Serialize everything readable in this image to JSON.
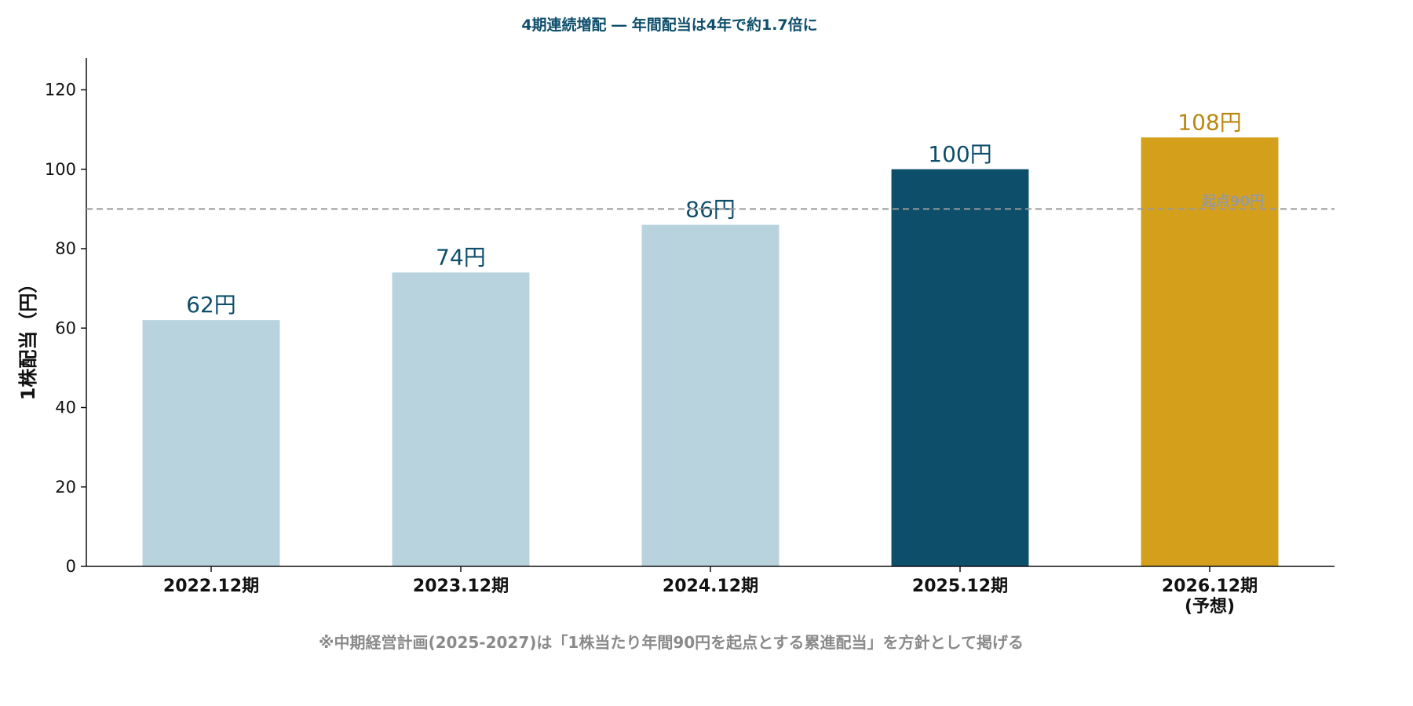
{
  "chart_data": {
    "type": "bar",
    "title": "4期連続増配 ― 年間配当は4年で約1.7倍に",
    "ylabel": "1株配当（円）",
    "ylim": [
      0,
      128
    ],
    "yticks": [
      0,
      20,
      40,
      60,
      80,
      100,
      120
    ],
    "categories": [
      "2022.12期",
      "2023.12期",
      "2024.12期",
      "2025.12期",
      "2026.12期"
    ],
    "category_sublabels": [
      "",
      "",
      "",
      "",
      "(予想)"
    ],
    "values": [
      62,
      74,
      86,
      100,
      108
    ],
    "value_labels": [
      "62円",
      "74円",
      "86円",
      "100円",
      "108円"
    ],
    "bar_colors": [
      "#b8d3dd",
      "#b8d3dd",
      "#b8d3dd",
      "#0d4e6b",
      "#d4a01c"
    ],
    "label_colors": [
      "#0d4e6b",
      "#0d4e6b",
      "#0d4e6b",
      "#0d4e6b",
      "#b8870e"
    ],
    "reference_line": {
      "value": 90,
      "label": "起点90円",
      "color": "#999999"
    },
    "grid": false,
    "note": "※中期経営計画(2025-2027)は「1株当たり年間90円を起点とする累進配当」を方針として掲げる",
    "colors": {
      "title": "#0d4e6b",
      "note": "#8a8a8a",
      "axis": "#111111"
    }
  }
}
